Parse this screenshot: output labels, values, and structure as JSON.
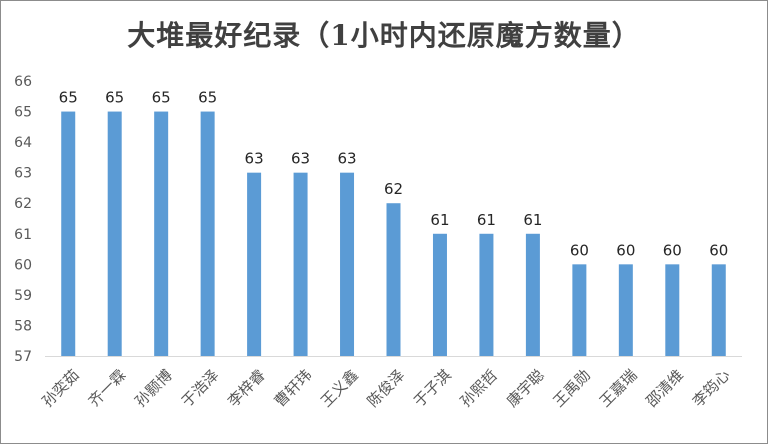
{
  "chart_data": {
    "type": "bar",
    "title": "大堆最好纪录（1小时内还原魔方数量）",
    "xlabel": "",
    "ylabel": "",
    "categories": [
      "孙奕茹",
      "齐一霖",
      "孙颢博",
      "于浩泽",
      "李梓睿",
      "曹轩玮",
      "王义鑫",
      "陈俊泽",
      "于子淇",
      "孙熙哲",
      "康宇聪",
      "王禹勋",
      "王嘉瑞",
      "邵清维",
      "李筠心"
    ],
    "values": [
      65,
      65,
      65,
      65,
      63,
      63,
      63,
      62,
      61,
      61,
      61,
      60,
      60,
      60,
      60
    ],
    "ylim": [
      57,
      66
    ],
    "yticks": [
      57,
      58,
      59,
      60,
      61,
      62,
      63,
      64,
      65,
      66
    ],
    "grid": false,
    "legend": "none",
    "bar_color": "#5b9bd5"
  }
}
